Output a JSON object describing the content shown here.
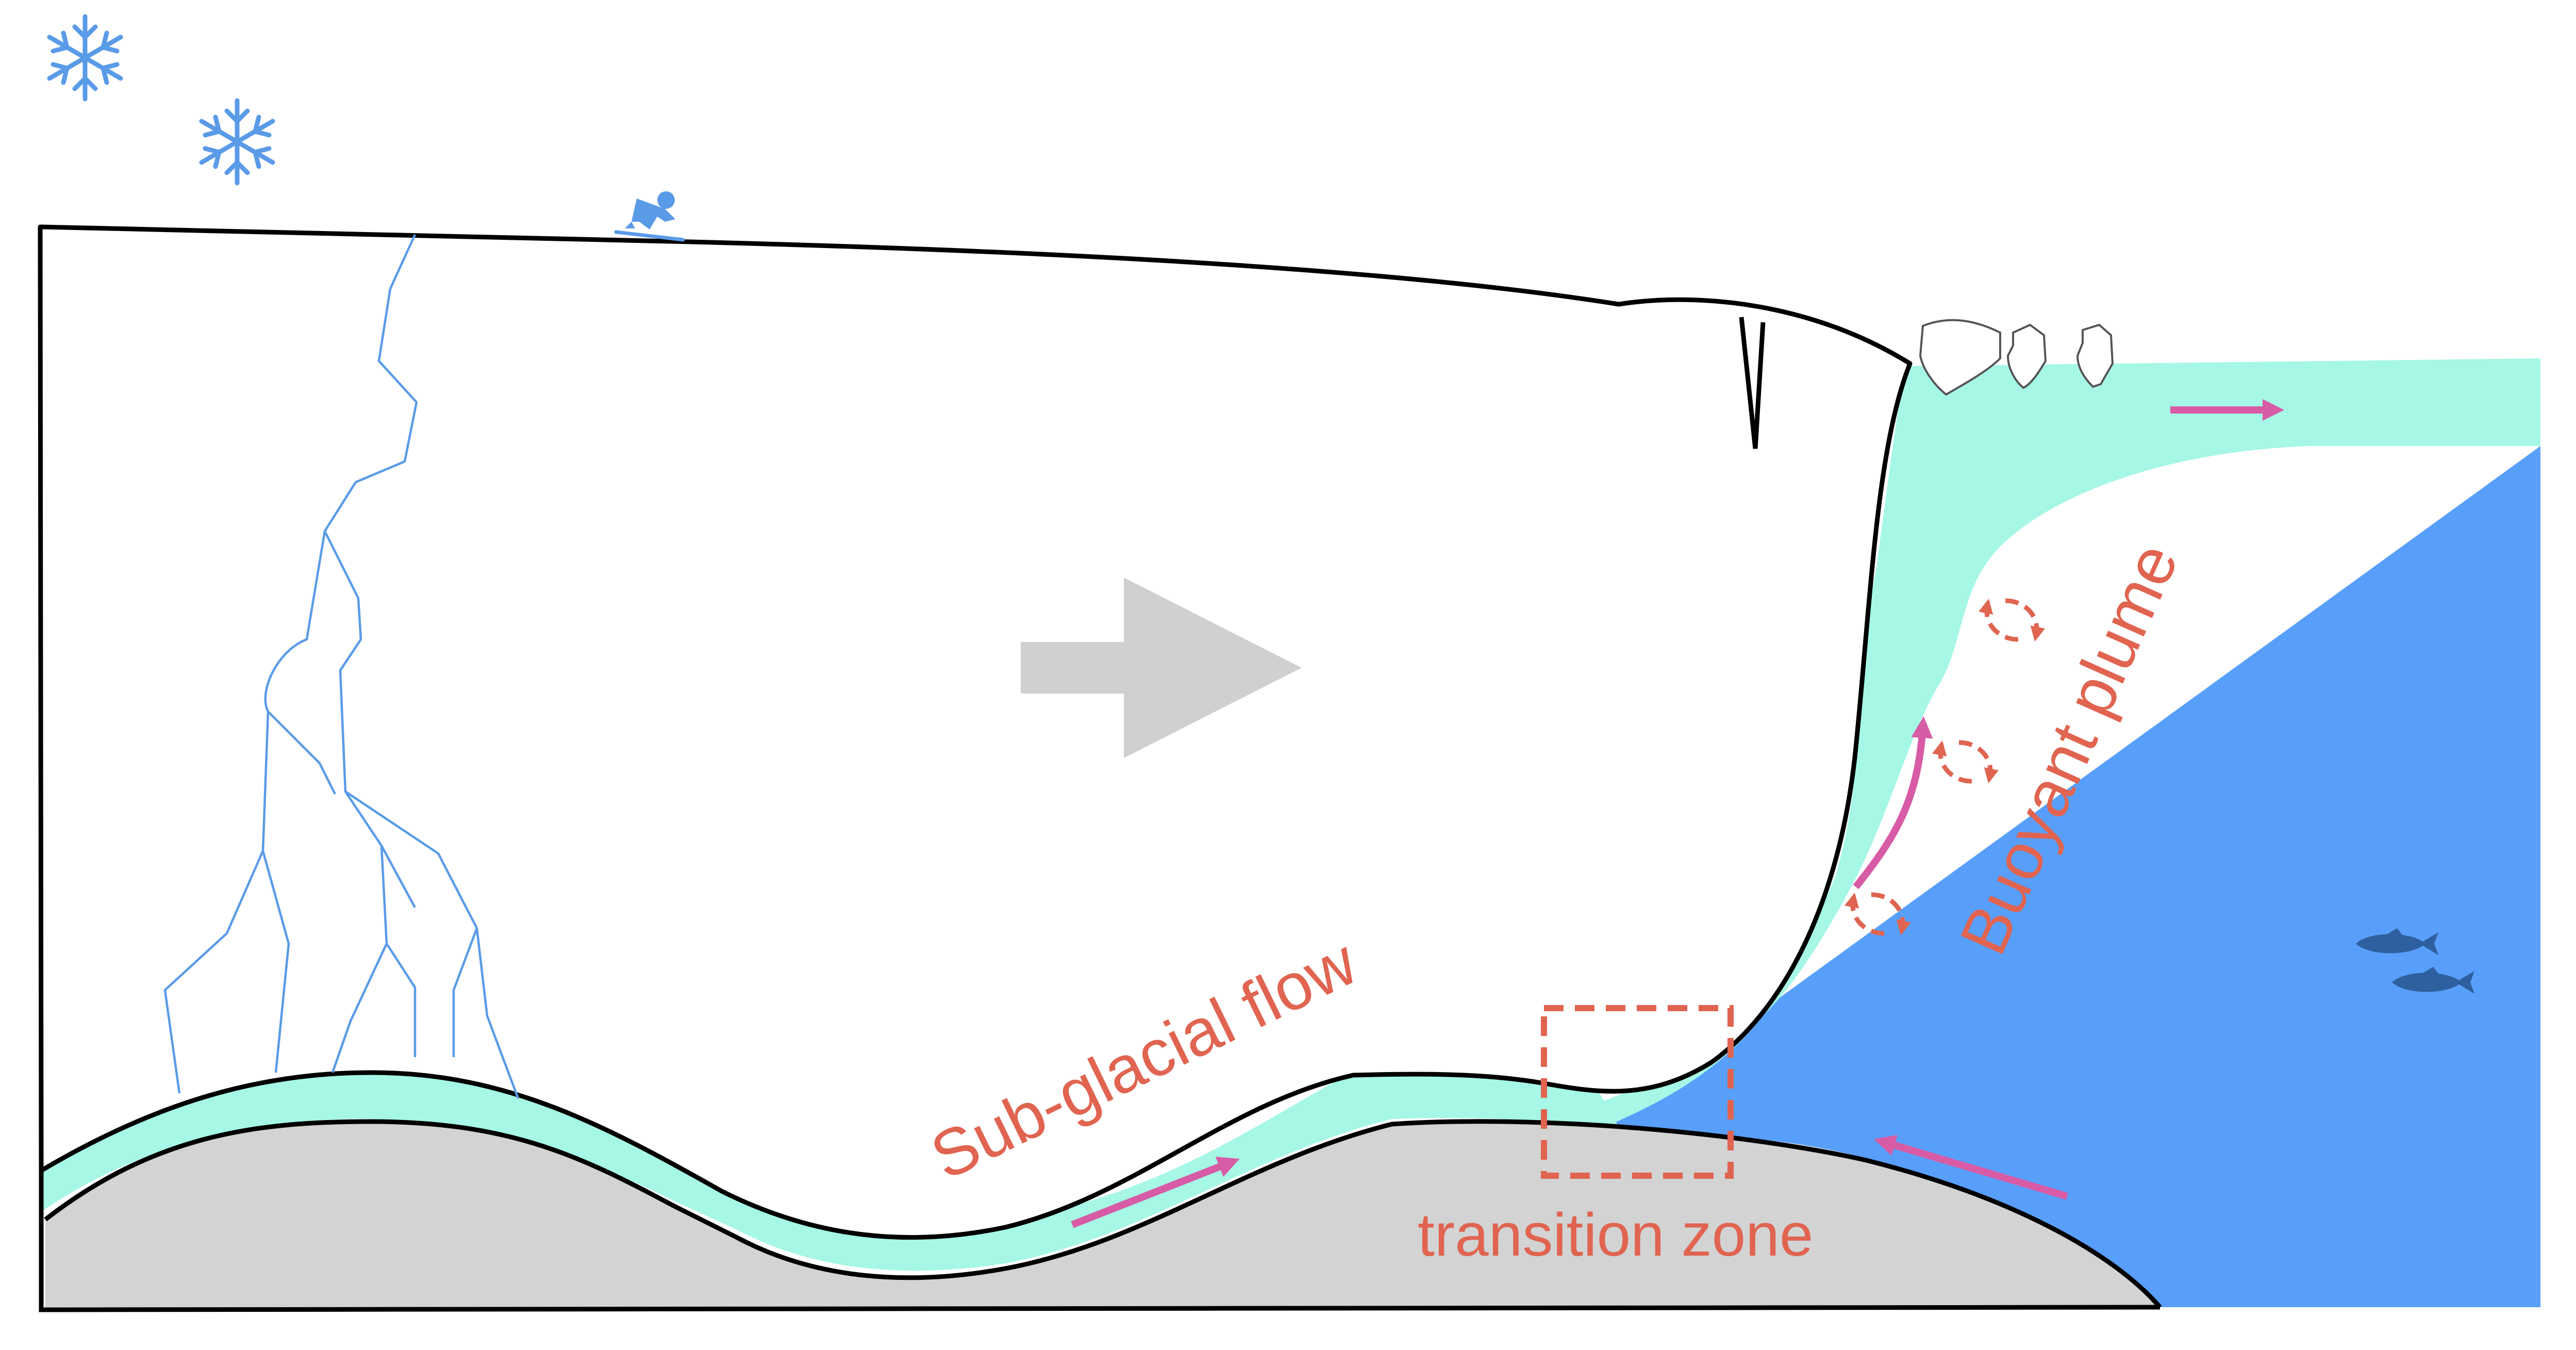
{
  "labels": {
    "subglacial_flow": "Sub-glacial flow",
    "buoyant_plume": "Buoyant plume",
    "transition_zone": "transition zone"
  },
  "colors": {
    "ice": "#ffffff",
    "meltwater": "#a6f7e6",
    "ocean": "#589ffc",
    "bedrock": "#d3d3d3",
    "outline": "#000000",
    "label": "#e06450",
    "flow_arrow": "#d85ba6",
    "ice_flow_arrow": "#d0d0d0",
    "crevasse": "#5a9be8",
    "snowflake": "#5a9be8",
    "fish": "#2e5f9e"
  },
  "icons": [
    "snowflake-icon",
    "skier-icon",
    "iceberg-icon",
    "fish-icon",
    "eddy-icon",
    "arrow-icon"
  ]
}
